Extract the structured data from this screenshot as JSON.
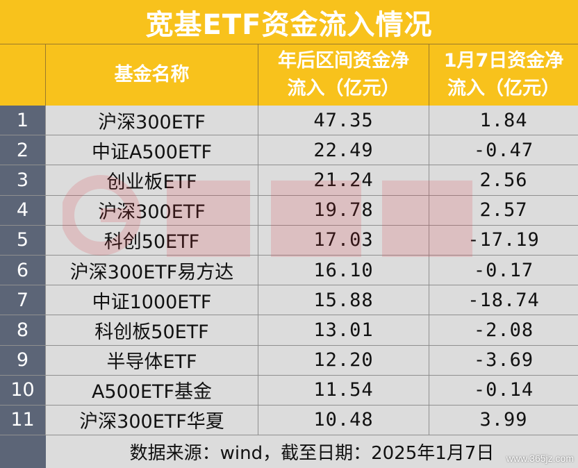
{
  "title": "宽基ETF资金流入情况",
  "headers": {
    "idx": "",
    "name": "基金名称",
    "ytd_line1": "年后区间资金净",
    "ytd_line2": "流入（亿元）",
    "day_line1": "1月7日资金净",
    "day_line2": "流入（亿元）"
  },
  "rows": [
    {
      "idx": "1",
      "name": "沪深300ETF",
      "ytd": "47.35",
      "day": "1.84"
    },
    {
      "idx": "2",
      "name": "中证A500ETF",
      "ytd": "22.49",
      "day": "-0.47"
    },
    {
      "idx": "3",
      "name": "创业板ETF",
      "ytd": "21.24",
      "day": "2.56"
    },
    {
      "idx": "4",
      "name": "沪深300ETF",
      "ytd": "19.78",
      "day": "2.57"
    },
    {
      "idx": "5",
      "name": "科创50ETF",
      "ytd": "17.03",
      "day": "-17.19"
    },
    {
      "idx": "6",
      "name": "沪深300ETF易方达",
      "ytd": "16.10",
      "day": "-0.17"
    },
    {
      "idx": "7",
      "name": "中证1000ETF",
      "ytd": "15.88",
      "day": "-18.74"
    },
    {
      "idx": "8",
      "name": "科创板50ETF",
      "ytd": "13.01",
      "day": "-2.08"
    },
    {
      "idx": "9",
      "name": "半导体ETF",
      "ytd": "12.20",
      "day": "-3.69"
    },
    {
      "idx": "10",
      "name": "A500ETF基金",
      "ytd": "11.54",
      "day": "-0.14"
    },
    {
      "idx": "11",
      "name": "沪深300ETF华夏",
      "ytd": "10.48",
      "day": "3.99"
    }
  ],
  "footer": "数据来源：wind，截至日期：2025年1月7日",
  "watermark_url": "www.365jz.com",
  "colors": {
    "header_bg": "#f8c21c",
    "index_bg": "#5c6577",
    "row_bg": "#dcdcdc",
    "watermark": "#e0303a"
  },
  "watermark_icon": "cailianshe-logo-icon"
}
